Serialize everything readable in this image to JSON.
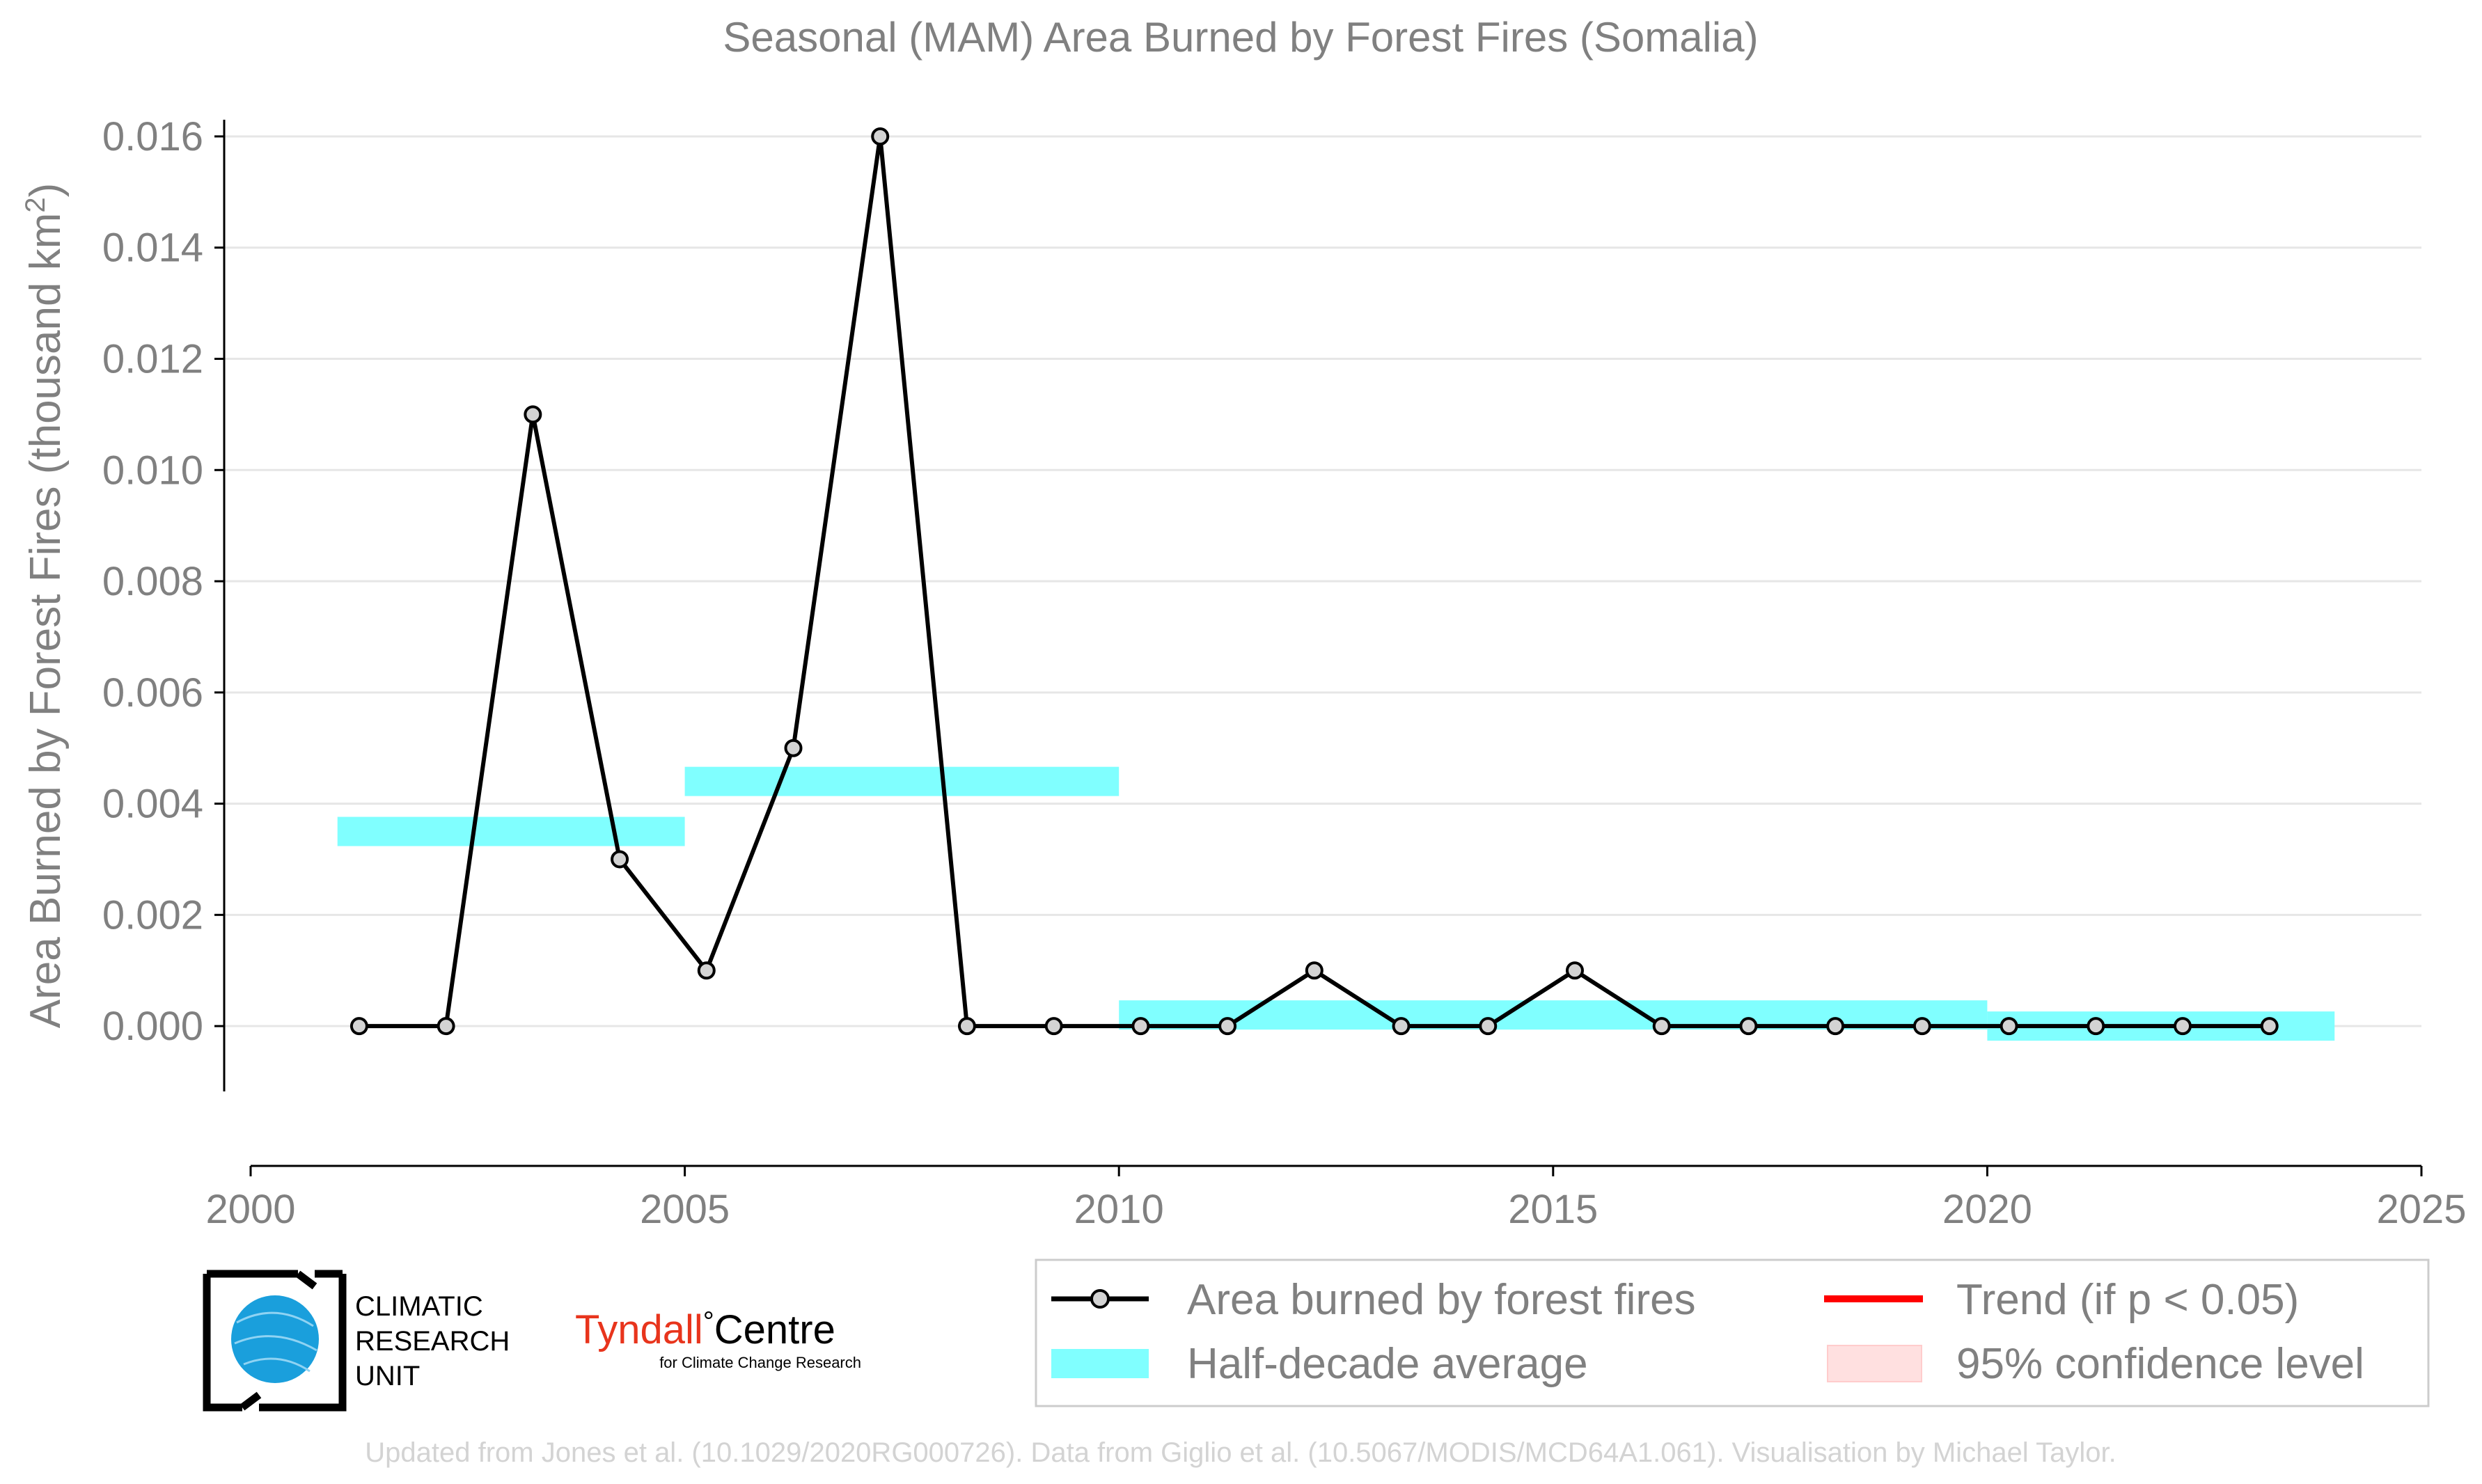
{
  "chart_data": {
    "type": "line",
    "title": "Seasonal (MAM) Area Burned by Forest Fires (Somalia)",
    "ylabel": "Area Burned by Forest Fires (thousand km",
    "ylabel_sup": "2",
    "ylabel_close": ")",
    "xlim": [
      2000,
      2025
    ],
    "ylim": [
      -0.0012,
      0.0163
    ],
    "x_ticks": [
      2000,
      2005,
      2010,
      2015,
      2020,
      2025
    ],
    "y_ticks": [
      "0.000",
      "0.002",
      "0.004",
      "0.006",
      "0.008",
      "0.010",
      "0.012",
      "0.014",
      "0.016"
    ],
    "grid": "horizontal",
    "series": [
      {
        "name": "Area burned by forest fires",
        "color": "#000000",
        "marker_fill": "#d3d3d3",
        "x": [
          2001.25,
          2002.25,
          2003.25,
          2004.25,
          2005.25,
          2006.25,
          2007.25,
          2008.25,
          2009.25,
          2010.25,
          2011.25,
          2012.25,
          2013.25,
          2014.25,
          2015.25,
          2016.25,
          2017.25,
          2018.25,
          2019.25,
          2020.25,
          2021.25,
          2022.25,
          2023.25
        ],
        "y": [
          0.0,
          0.0,
          0.011,
          0.003,
          0.001,
          0.005,
          0.016,
          0.0,
          0.0,
          0.0,
          0.0,
          0.001,
          0.0,
          0.0,
          0.001,
          0.0,
          0.0,
          0.0,
          0.0,
          0.0,
          0.0,
          0.0,
          0.0
        ]
      }
    ],
    "half_decade_average": {
      "name": "Half-decade average",
      "color": "#80ffff",
      "segments": [
        {
          "x_start": 2001,
          "x_end": 2005,
          "value": 0.0035
        },
        {
          "x_start": 2005,
          "x_end": 2010,
          "value": 0.0044
        },
        {
          "x_start": 2010,
          "x_end": 2020,
          "value": 0.0002
        },
        {
          "x_start": 2020,
          "x_end": 2024,
          "value": 0.0
        }
      ]
    },
    "legend": {
      "position": "bottom-right",
      "entries": [
        {
          "label": "Area burned by forest fires",
          "kind": "line-marker",
          "color": "#000000"
        },
        {
          "label": "Trend (if p < 0.05)",
          "kind": "line",
          "color": "#ff0000"
        },
        {
          "label": "Half-decade average",
          "kind": "band",
          "color": "#80ffff"
        },
        {
          "label": "95% confidence level",
          "kind": "patch",
          "color": "#ffe0e0"
        }
      ]
    }
  },
  "logos": {
    "cru_lines": [
      "CLIMATIC",
      "RESEARCH",
      "UNIT"
    ],
    "tyndall_main": "Tyndall",
    "tyndall_degree": "°",
    "tyndall_centre": "Centre",
    "tyndall_sub": "for Climate Change Research"
  },
  "credit": "Updated from Jones et al. (10.1029/2020RG000726). Data from Giglio et al. (10.5067/MODIS/MCD64A1.061). Visualisation by Michael Taylor."
}
